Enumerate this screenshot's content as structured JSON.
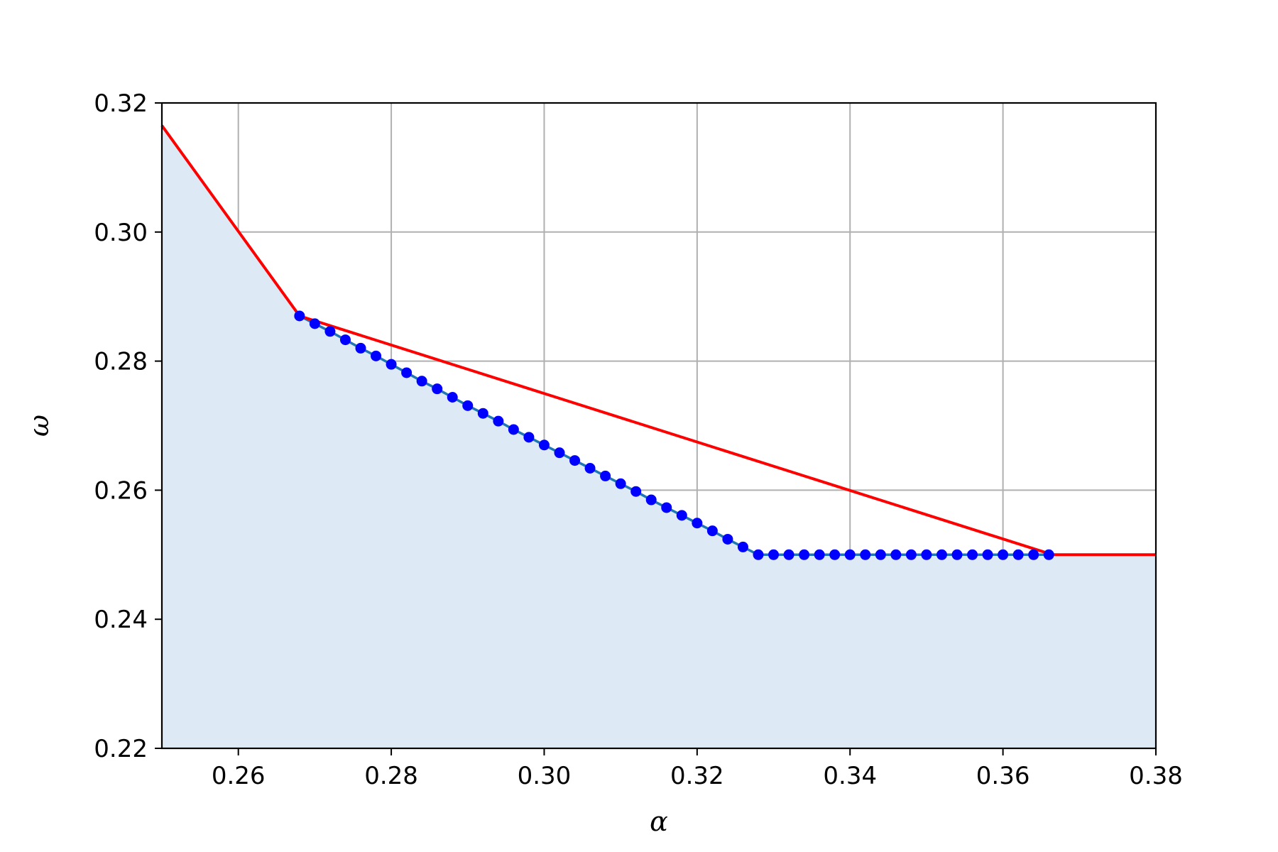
{
  "chart_data": {
    "type": "line",
    "title": "",
    "xlabel": "α",
    "ylabel": "ω",
    "xlim": [
      0.25,
      0.38
    ],
    "ylim": [
      0.22,
      0.32
    ],
    "xticks": [
      0.26,
      0.28,
      0.3,
      0.32,
      0.34,
      0.36,
      0.38
    ],
    "xtick_labels": [
      "0.26",
      "0.28",
      "0.30",
      "0.32",
      "0.34",
      "0.36",
      "0.38"
    ],
    "yticks": [
      0.22,
      0.24,
      0.26,
      0.28,
      0.3,
      0.32
    ],
    "ytick_labels": [
      "0.22",
      "0.24",
      "0.26",
      "0.28",
      "0.30",
      "0.32"
    ],
    "grid": true,
    "legend": "none",
    "colors": {
      "fill": "#dde9f5",
      "red_line": "#ff0000",
      "blue_markers": "#0000ff",
      "blue_line": "#1f77b4",
      "grid": "#b0b0b0"
    },
    "series": [
      {
        "style": "red-line",
        "x": [
          0.25,
          0.268,
          0.3665,
          0.38
        ],
        "y": [
          0.3165,
          0.287,
          0.25,
          0.25
        ]
      },
      {
        "style": "blue-line-with-markers",
        "x": [
          0.268,
          0.27,
          0.272,
          0.274,
          0.276,
          0.278,
          0.28,
          0.282,
          0.284,
          0.286,
          0.288,
          0.29,
          0.292,
          0.294,
          0.296,
          0.298,
          0.3,
          0.302,
          0.304,
          0.306,
          0.308,
          0.31,
          0.312,
          0.314,
          0.316,
          0.318,
          0.32,
          0.322,
          0.324,
          0.326,
          0.328,
          0.33,
          0.332,
          0.334,
          0.336,
          0.338,
          0.34,
          0.342,
          0.344,
          0.346,
          0.348,
          0.35,
          0.352,
          0.354,
          0.356,
          0.358,
          0.36,
          0.362,
          0.364,
          0.366
        ],
        "y": [
          0.287,
          0.2858,
          0.2846,
          0.2833,
          0.282,
          0.2808,
          0.2795,
          0.2782,
          0.2769,
          0.2757,
          0.2744,
          0.2731,
          0.2719,
          0.2707,
          0.2694,
          0.2682,
          0.267,
          0.2658,
          0.2646,
          0.2634,
          0.2622,
          0.261,
          0.2598,
          0.2585,
          0.2573,
          0.2561,
          0.2549,
          0.2537,
          0.2524,
          0.2512,
          0.25,
          0.25,
          0.25,
          0.25,
          0.25,
          0.25,
          0.25,
          0.25,
          0.25,
          0.25,
          0.25,
          0.25,
          0.25,
          0.25,
          0.25,
          0.25,
          0.25,
          0.25,
          0.25,
          0.25
        ]
      }
    ],
    "fill_region": "area under the lower envelope (blue curve, then red line), down to the x-axis"
  }
}
